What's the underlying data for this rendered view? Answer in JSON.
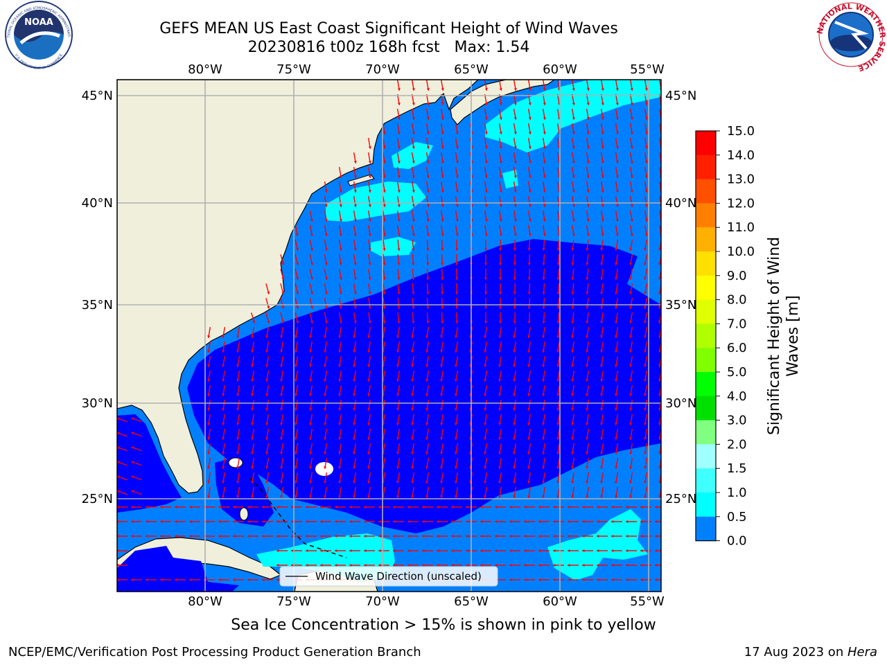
{
  "title": {
    "line1": "GEFS MEAN US East Coast Significant Height of Wind Waves",
    "line2": "20230816 t00z 168h fcst   Max: 1.54"
  },
  "logos": {
    "left": {
      "text": "NOAA",
      "ring_top": "NATIONAL OCEANIC AND ATMOSPHERIC ADMINISTRATION",
      "ring_bottom": "U.S. DEPARTMENT OF COMMERCE"
    },
    "right": {
      "ring": "NATIONAL WEATHER SERVICE"
    }
  },
  "map": {
    "lon_labels": [
      "80°W",
      "75°W",
      "70°W",
      "65°W",
      "60°W",
      "55°W"
    ],
    "lat_labels": [
      "45°N",
      "40°N",
      "35°N",
      "30°N",
      "25°N"
    ],
    "legend_label": "Wind Wave Direction (unscaled)",
    "colors": {
      "land": "#efefdc",
      "ocean_low": "#0000ff",
      "ocean_mid": "#0080ff",
      "ocean_high": "#00ffff",
      "arrow": "#ff0000",
      "grid": "#b0b0b0"
    }
  },
  "colorbar": {
    "label_line1": "Significant Height of Wind",
    "label_line2": "Waves [m]",
    "ticks": [
      "15.0",
      "14.0",
      "13.0",
      "12.0",
      "11.0",
      "10.0",
      "9.0",
      "8.0",
      "7.0",
      "6.0",
      "5.0",
      "4.0",
      "3.0",
      "2.0",
      "1.5",
      "1.0",
      "0.5",
      "0.0"
    ],
    "colors": [
      "#ff0000",
      "#ff2000",
      "#ff5000",
      "#ff8000",
      "#ffb000",
      "#ffe000",
      "#ffff00",
      "#e0ff00",
      "#b0ff00",
      "#80ff00",
      "#00ff00",
      "#00e000",
      "#80ff80",
      "#a0ffff",
      "#40ffff",
      "#00ffff",
      "#0080ff",
      "#0000ff"
    ]
  },
  "ice_note": "Sea Ice Concentration > 15% is shown in pink to yellow",
  "footer": {
    "left": "NCEP/EMC/Verification Post Processing Product Generation Branch",
    "date": "17 Aug 2023 on ",
    "machine": "Hera"
  }
}
